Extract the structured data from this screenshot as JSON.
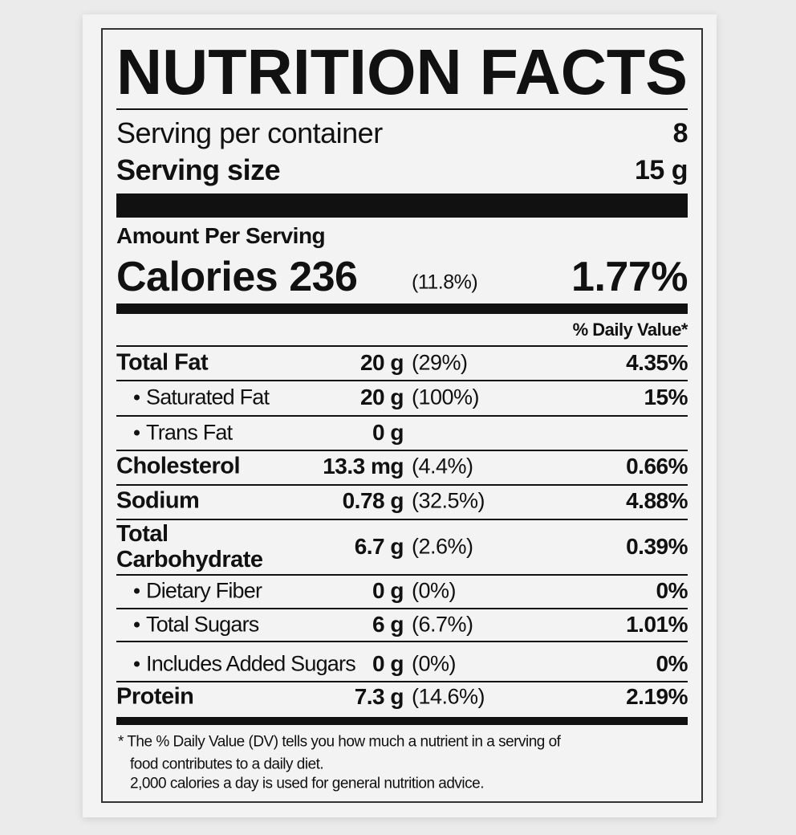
{
  "title": "NUTRITION FACTS",
  "servings": {
    "label": "Serving per container",
    "value": "8"
  },
  "serving_size": {
    "label": "Serving size",
    "value": "15 g"
  },
  "amount_per_serving": "Amount Per Serving",
  "calories": {
    "label": "Calories",
    "value": "236",
    "percent": "(11.8%)",
    "daily_value": "1.77%"
  },
  "daily_value_header": "% Daily Value*",
  "nutrients": [
    {
      "name": "Total Fat",
      "amount": "20 g",
      "percent": "(29%)",
      "daily_value": "4.35%",
      "sub": false
    },
    {
      "name": "Saturated Fat",
      "amount": "20 g",
      "percent": "(100%)",
      "daily_value": "15%",
      "sub": true
    },
    {
      "name": "Trans Fat",
      "amount": "0 g",
      "sub": true
    },
    {
      "name": "Cholesterol",
      "amount": "13.3 mg",
      "percent": "(4.4%)",
      "daily_value": "0.66%",
      "sub": false
    },
    {
      "name": "Sodium",
      "amount": "0.78 g",
      "percent": "(32.5%)",
      "daily_value": "4.88%",
      "sub": false
    },
    {
      "name": "Total Carbohydrate",
      "amount": "6.7 g",
      "percent": "(2.6%)",
      "daily_value": "0.39%",
      "sub": false
    },
    {
      "name": "Dietary Fiber",
      "amount": "0 g",
      "percent": "(0%)",
      "daily_value": "0%",
      "sub": true
    },
    {
      "name": "Total Sugars",
      "amount": "6 g",
      "percent": "(6.7%)",
      "daily_value": "1.01%",
      "sub": true
    },
    {
      "name": "Includes Added Sugars",
      "amount": "0 g",
      "percent": "(0%)",
      "daily_value": "0%",
      "sub": true
    },
    {
      "name": "Protein",
      "amount": "7.3 g",
      "percent": "(14.6%)",
      "daily_value": "2.19%",
      "sub": false
    }
  ],
  "footnote": [
    "* The % Daily Value (DV) tells you how much a nutrient in a serving of",
    "food contributes to a daily diet.",
    "2,000 calories a day is used for general nutrition advice."
  ]
}
